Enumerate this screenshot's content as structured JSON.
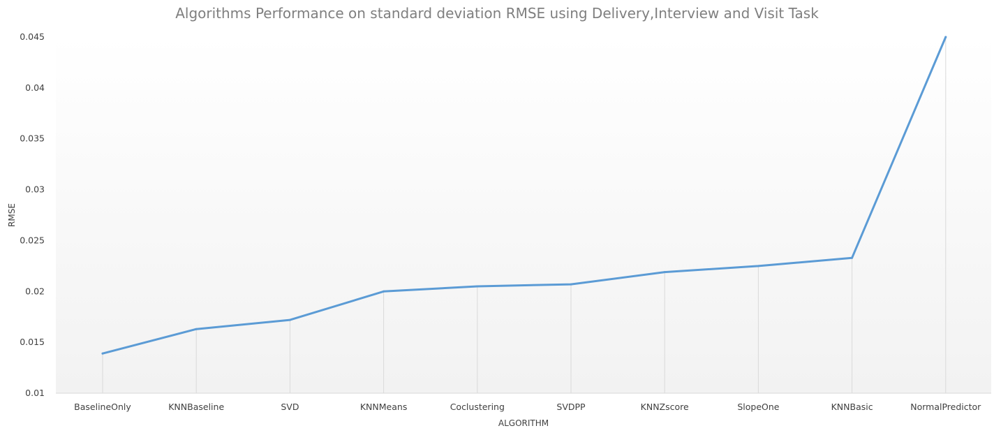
{
  "chart_data": {
    "type": "line",
    "title": "Algorithms Performance on standard deviation RMSE using Delivery,Interview and Visit Task",
    "xlabel": "ALGORITHM",
    "ylabel": "RMSE",
    "categories": [
      "BaselineOnly",
      "KNNBaseline",
      "SVD",
      "KNNMeans",
      "Coclustering",
      "SVDPP",
      "KNNZscore",
      "SlopeOne",
      "KNNBasic",
      "NormalPredictor"
    ],
    "series": [
      {
        "values": [
          0.0139,
          0.0163,
          0.0172,
          0.02,
          0.0205,
          0.0207,
          0.0219,
          0.0225,
          0.0233,
          0.045
        ]
      }
    ],
    "ylim": [
      0.01,
      0.045
    ],
    "yticks": [
      "0.01",
      "0.015",
      "0.02",
      "0.025",
      "0.03",
      "0.035",
      "0.04",
      "0.045"
    ],
    "grid": false,
    "drop_lines": true,
    "legend": "none",
    "colors": {
      "line": "#5b9bd5",
      "plot_bg_top": "#ffffff",
      "plot_bg_bottom": "#f2f2f2"
    }
  }
}
